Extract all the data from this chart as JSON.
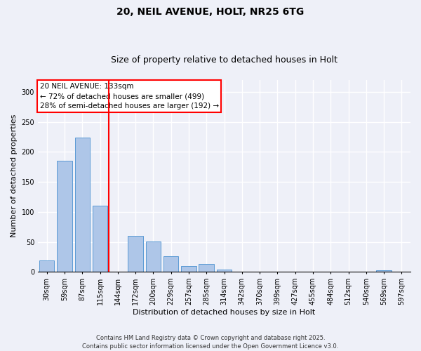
{
  "title_line1": "20, NEIL AVENUE, HOLT, NR25 6TG",
  "title_line2": "Size of property relative to detached houses in Holt",
  "xlabel": "Distribution of detached houses by size in Holt",
  "ylabel": "Number of detached properties",
  "categories": [
    "30sqm",
    "59sqm",
    "87sqm",
    "115sqm",
    "144sqm",
    "172sqm",
    "200sqm",
    "229sqm",
    "257sqm",
    "285sqm",
    "314sqm",
    "342sqm",
    "370sqm",
    "399sqm",
    "427sqm",
    "455sqm",
    "484sqm",
    "512sqm",
    "540sqm",
    "569sqm",
    "597sqm"
  ],
  "values": [
    19,
    185,
    224,
    110,
    0,
    60,
    51,
    26,
    10,
    13,
    4,
    0,
    0,
    0,
    0,
    0,
    0,
    0,
    0,
    3,
    0
  ],
  "bar_color": "#aec6e8",
  "bar_edge_color": "#5b9bd5",
  "vline_color": "red",
  "vline_x_index": 4,
  "annotation_title": "20 NEIL AVENUE: 133sqm",
  "annotation_line2": "← 72% of detached houses are smaller (499)",
  "annotation_line3": "28% of semi-detached houses are larger (192) →",
  "ylim": [
    0,
    320
  ],
  "yticks": [
    0,
    50,
    100,
    150,
    200,
    250,
    300
  ],
  "footer_line1": "Contains HM Land Registry data © Crown copyright and database right 2025.",
  "footer_line2": "Contains public sector information licensed under the Open Government Licence v3.0.",
  "background_color": "#eef0f8",
  "plot_bg_color": "#eef0f8",
  "title1_fontsize": 10,
  "title2_fontsize": 9,
  "ylabel_fontsize": 8,
  "xlabel_fontsize": 8,
  "tick_fontsize": 7,
  "ann_fontsize": 7.5,
  "footer_fontsize": 6
}
